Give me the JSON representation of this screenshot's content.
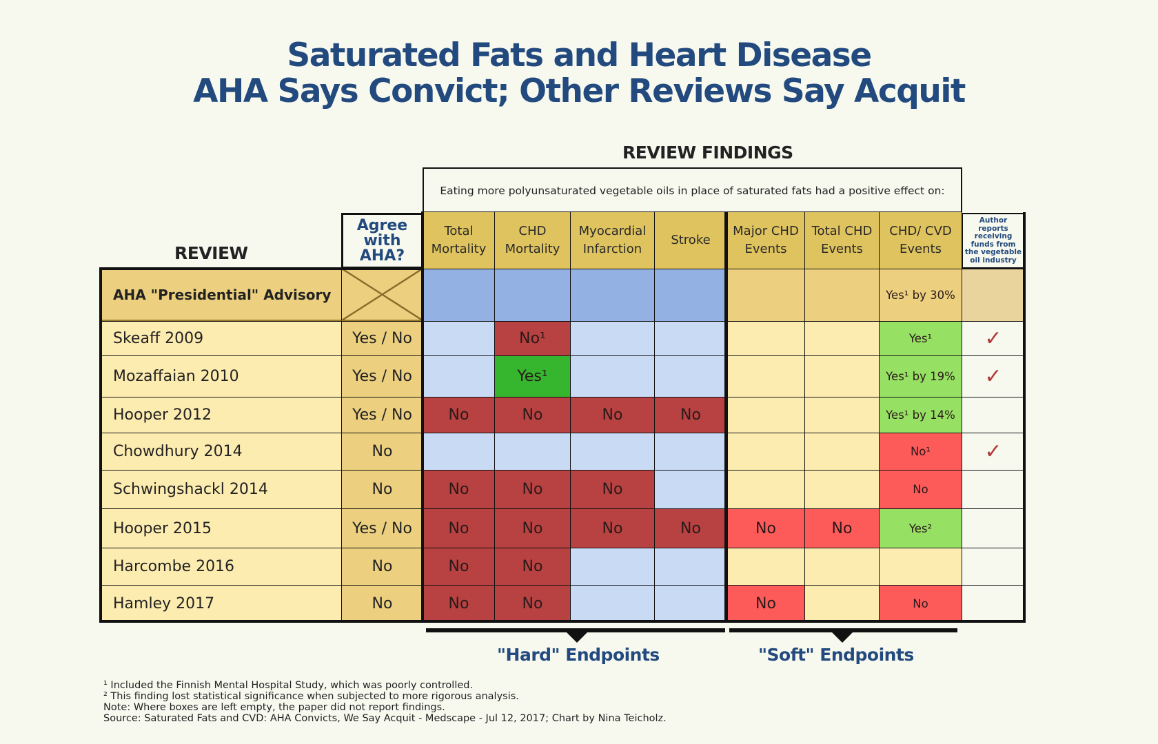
{
  "title": {
    "line1": "Saturated Fats and Heart Disease",
    "line2": "AHA Says Convict; Other Reviews Say Acquit"
  },
  "colors": {
    "title": "#234a7e",
    "header": "#dfc35f",
    "aha_row": "#ecd07f",
    "aha_hard": "#93b1e2",
    "hard_empty": "#c9daf5",
    "soft_empty": "#fdecb0",
    "hard_no": "#b84141",
    "hard_yes": "#36b52e",
    "soft_no": "#fd5a5a",
    "soft_yes": "#96e063",
    "author_aha": "#e8d49c",
    "author_empty": "#f7f9ef",
    "check": "#b23a3a"
  },
  "headings": {
    "review": "REVIEW",
    "review_findings": "REVIEW FINDINGS",
    "description": "Eating more polyunsaturated vegetable oils in place of saturated fats had a positive effect on:",
    "agree": "Agree with AHA?",
    "author": "Author reports receiving funds from the vegetable oil industry"
  },
  "chart_data": {
    "type": "table",
    "title": "Saturated Fats and Heart Disease — AHA Says Convict; Other Reviews Say Acquit",
    "columns": [
      "Review",
      "Agree with AHA?",
      "Total Mortality",
      "CHD Mortality",
      "Myocardial Infarction",
      "Stroke",
      "Major CHD Events",
      "Total CHD Events",
      "CHD/ CVD Events",
      "Author reports receiving funds from the vegetable oil industry"
    ],
    "column_groups": [
      {
        "name": "\"Hard\" Endpoints",
        "columns": [
          "Total Mortality",
          "CHD Mortality",
          "Myocardial Infarction",
          "Stroke"
        ]
      },
      {
        "name": "\"Soft\" Endpoints",
        "columns": [
          "Major CHD Events",
          "Total CHD Events",
          "CHD/ CVD Events"
        ]
      }
    ],
    "findings_columns": [
      {
        "label": "Total\nMortality",
        "group": "hard"
      },
      {
        "label": "CHD\nMortality",
        "group": "hard"
      },
      {
        "label": "Myocardial\nInfarction",
        "group": "hard"
      },
      {
        "label": "Stroke",
        "group": "hard"
      },
      {
        "label": "Major CHD\nEvents",
        "group": "soft"
      },
      {
        "label": "Total CHD\nEvents",
        "group": "soft"
      },
      {
        "label": "CHD/ CVD\nEvents",
        "group": "soft"
      }
    ],
    "rows": [
      {
        "review": "AHA \"Presidential\" Advisory",
        "agree": null,
        "findings": [
          "",
          "",
          "",
          "",
          "",
          "",
          "Yes¹ by 30%"
        ],
        "funded": false,
        "is_aha": true
      },
      {
        "review": "Skeaff 2009",
        "agree": "Yes / No",
        "findings": [
          "",
          "No¹",
          "",
          "",
          "",
          "",
          "Yes¹"
        ],
        "funded": true
      },
      {
        "review": "Mozaffaian 2010",
        "agree": "Yes / No",
        "findings": [
          "",
          "Yes¹",
          "",
          "",
          "",
          "",
          "Yes¹ by 19%"
        ],
        "funded": true
      },
      {
        "review": "Hooper 2012",
        "agree": "Yes / No",
        "findings": [
          "No",
          "No",
          "No",
          "No",
          "",
          "",
          "Yes¹ by 14%"
        ],
        "funded": false
      },
      {
        "review": "Chowdhury 2014",
        "agree": "No",
        "findings": [
          "",
          "",
          "",
          "",
          "",
          "",
          "No¹"
        ],
        "funded": true
      },
      {
        "review": "Schwingshackl 2014",
        "agree": "No",
        "findings": [
          "No",
          "No",
          "No",
          "",
          "",
          "",
          "No"
        ],
        "funded": false
      },
      {
        "review": "Hooper 2015",
        "agree": "Yes / No",
        "findings": [
          "No",
          "No",
          "No",
          "No",
          "No",
          "No",
          "Yes²"
        ],
        "funded": false
      },
      {
        "review": "Harcombe 2016",
        "agree": "No",
        "findings": [
          "No",
          "No",
          "",
          "",
          "",
          "",
          ""
        ],
        "funded": false
      },
      {
        "review": "Hamley 2017",
        "agree": "No",
        "findings": [
          "No",
          "No",
          "",
          "",
          "No",
          "",
          "No"
        ],
        "funded": false
      }
    ]
  },
  "check_glyph": "✓",
  "endpoints": {
    "hard": "\"Hard\" Endpoints",
    "soft": "\"Soft\" Endpoints"
  },
  "footnotes": [
    "¹ Included the Finnish Mental Hospital Study, which was poorly controlled.",
    "² This finding lost statistical significance when subjected to more rigorous analysis.",
    "Note: Where boxes are left empty, the paper did not report findings.",
    "Source: Saturated Fats and CVD: AHA Convicts, We Say Acquit - Medscape - Jul 12, 2017; Chart by Nina Teicholz."
  ]
}
